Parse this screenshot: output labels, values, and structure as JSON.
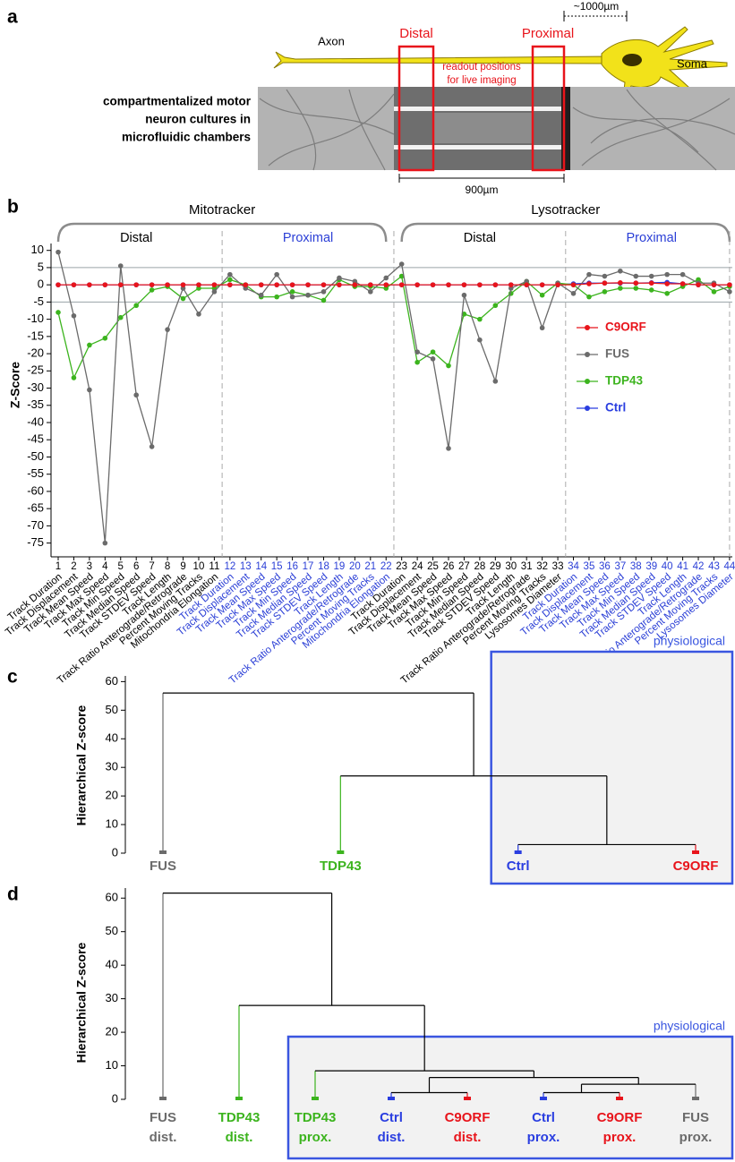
{
  "figure": {
    "panel_a": {
      "letter": "a",
      "scale_bar": "~1000µm",
      "axon": "Axon",
      "soma": "Soma",
      "distal": "Distal",
      "proximal": "Proximal",
      "readout": [
        "readout positions",
        "for live imaging"
      ],
      "culture_caption": [
        "compartmentalized motor",
        "neuron cultures in",
        "microfluidic chambers"
      ],
      "chamber_length": "900µm"
    }
  },
  "chart_data": [
    {
      "panel": "b",
      "type": "line",
      "ylabel": "Z-Score",
      "ylim": [
        -79,
        12
      ],
      "yticks": [
        10,
        5,
        0,
        -5,
        -10,
        -15,
        -20,
        -25,
        -30,
        -35,
        -40,
        -45,
        -50,
        -55,
        -60,
        -65,
        -70,
        -75
      ],
      "reference_lines": [
        5,
        -5
      ],
      "categories": [
        1,
        2,
        3,
        4,
        5,
        6,
        7,
        8,
        9,
        10,
        11,
        12,
        13,
        14,
        15,
        16,
        17,
        18,
        19,
        20,
        21,
        22,
        23,
        24,
        25,
        26,
        27,
        28,
        29,
        30,
        31,
        32,
        33,
        34,
        35,
        36,
        37,
        38,
        39,
        40,
        41,
        42,
        43,
        44
      ],
      "groups": [
        {
          "name": "Mitotracker",
          "subgroups": [
            {
              "name": "Distal",
              "color": "#000000",
              "metrics": [
                "Track Duration",
                "Track Displacement",
                "Track Mean Speed",
                "Track Max Speed",
                "Track Min Speed",
                "Track Median Speed",
                "Track STDEV Speed",
                "Track Length",
                "Track Ratio Anterograde/Retrograde",
                "Percent Moving Tracks",
                "Mitochondria Elongation"
              ]
            },
            {
              "name": "Proximal",
              "color": "#2b3fd6",
              "metrics": [
                "Track Duration",
                "Track Displacement",
                "Track Mean Speed",
                "Track Max Speed",
                "Track Min Speed",
                "Track Median Speed",
                "Track STDEV Speed",
                "Track Length",
                "Track Ratio Anterograde/Retrograde",
                "Percent Moving Tracks",
                "Mitochondria Elongation"
              ]
            }
          ]
        },
        {
          "name": "Lysotracker",
          "subgroups": [
            {
              "name": "Distal",
              "color": "#000000",
              "metrics": [
                "Track Duration",
                "Track Displacement",
                "Track Mean Speed",
                "Track Max Speed",
                "Track Min Speed",
                "Track Median Speed",
                "Track STDEV Speed",
                "Track Length",
                "Track Ratio Anterograde/Retrograde",
                "Percent Moving Tracks",
                "Lysosomes Diameter"
              ]
            },
            {
              "name": "Proximal",
              "color": "#2b3fd6",
              "metrics": [
                "Track Duration",
                "Track Displacement",
                "Track Mean Speed",
                "Track Max Speed",
                "Track Min Speed",
                "Track Median Speed",
                "Track STDEV Speed",
                "Track Length",
                "Track Ratio Anterograde/Retrograde",
                "Percent Moving Tracks",
                "Lysosomes Diameter"
              ]
            }
          ]
        }
      ],
      "series": [
        {
          "name": "C9ORF",
          "color": "#e8141b",
          "values": [
            0,
            0,
            0,
            0,
            0,
            0,
            0,
            0,
            0,
            0,
            0,
            0,
            0,
            0,
            0,
            0,
            0,
            0,
            0,
            0,
            0,
            0,
            0,
            0,
            0,
            0,
            0,
            0,
            0,
            0,
            0,
            0,
            0,
            0,
            0.3,
            0.5,
            0.6,
            0.5,
            0.5,
            0.3,
            0.3,
            0,
            0,
            0
          ]
        },
        {
          "name": "FUS",
          "color": "#6b6b6b",
          "values": [
            9.5,
            -9,
            -30.5,
            -75,
            5.5,
            -32,
            -47,
            -13,
            -1,
            -8.5,
            -2,
            3,
            -1,
            -3,
            3,
            -3.5,
            -3,
            -2,
            2,
            1,
            -2,
            2,
            6,
            -19.5,
            -21.5,
            -47.5,
            -3,
            -16,
            -28,
            -1,
            1,
            -12.5,
            0.5,
            -2.5,
            3,
            2.5,
            4,
            2.5,
            2.5,
            3,
            3,
            0.5,
            0.5,
            -2
          ]
        },
        {
          "name": "TDP43",
          "color": "#3cb41e",
          "values": [
            -8,
            -27,
            -17.5,
            -15.5,
            -9.5,
            -6,
            -1.5,
            -0.5,
            -4,
            -1,
            -1,
            1.5,
            0,
            -3.5,
            -3.5,
            -2,
            -3,
            -4.5,
            1.5,
            -0.5,
            -0.5,
            -1,
            2.5,
            -22.5,
            -19.5,
            -23.5,
            -8.5,
            -10,
            -6,
            -2.5,
            1,
            -3,
            0.5,
            0,
            -3.5,
            -2,
            -1,
            -1,
            -1.5,
            -2.5,
            -0.5,
            1.5,
            -2,
            -0.5
          ]
        },
        {
          "name": "Ctrl",
          "color": "#2a3ee0",
          "values": [
            0,
            0,
            0,
            0,
            0,
            0,
            0,
            0,
            0,
            0,
            0,
            0,
            0,
            0,
            0,
            0,
            0,
            0,
            0,
            0,
            0,
            0,
            0,
            0,
            0,
            0,
            0,
            0,
            0,
            0,
            0,
            0,
            0,
            0.3,
            0.5,
            0.5,
            0.5,
            0.5,
            0.6,
            0.7,
            0.3,
            0,
            0,
            0
          ]
        }
      ],
      "legend": "right"
    },
    {
      "panel": "c",
      "type": "dendrogram",
      "ylabel": "Hierarchical Z-score",
      "ylim": [
        0,
        62
      ],
      "yticks": [
        0,
        10,
        20,
        30,
        40,
        50,
        60
      ],
      "highlight_color": "#3a56e0",
      "tree": {
        "height": 56,
        "children": [
          {
            "label": "FUS",
            "color": "#6b6b6b"
          },
          {
            "height": 27,
            "children": [
              {
                "label": "TDP43",
                "color": "#3cb41e"
              },
              {
                "height": 3,
                "highlight": "physiological",
                "children": [
                  {
                    "label": "Ctrl",
                    "color": "#2a3ee0"
                  },
                  {
                    "label": "C9ORF",
                    "color": "#e8141b"
                  }
                ]
              }
            ]
          }
        ]
      }
    },
    {
      "panel": "d",
      "type": "dendrogram",
      "ylabel": "Hierarchical Z-score",
      "ylim": [
        0,
        63
      ],
      "yticks": [
        0,
        10,
        20,
        30,
        40,
        50,
        60
      ],
      "highlight_color": "#3a56e0",
      "tree": {
        "height": 61.5,
        "children": [
          {
            "label": "FUS",
            "sublabel": "dist.",
            "color": "#6b6b6b"
          },
          {
            "height": 28,
            "children": [
              {
                "label": "TDP43",
                "sublabel": "dist.",
                "color": "#3cb41e"
              },
              {
                "height": 8.5,
                "highlight": "physiological",
                "children": [
                  {
                    "label": "TDP43",
                    "sublabel": "prox.",
                    "color": "#3cb41e"
                  },
                  {
                    "height": 6.5,
                    "children": [
                      {
                        "height": 2,
                        "children": [
                          {
                            "label": "Ctrl",
                            "sublabel": "dist.",
                            "color": "#2a3ee0"
                          },
                          {
                            "label": "C9ORF",
                            "sublabel": "dist.",
                            "color": "#e8141b"
                          }
                        ]
                      },
                      {
                        "height": 4.5,
                        "children": [
                          {
                            "height": 2,
                            "children": [
                              {
                                "label": "Ctrl",
                                "sublabel": "prox.",
                                "color": "#2a3ee0"
                              },
                              {
                                "label": "C9ORF",
                                "sublabel": "prox.",
                                "color": "#e8141b"
                              }
                            ]
                          },
                          {
                            "label": "FUS",
                            "sublabel": "prox.",
                            "color": "#6b6b6b"
                          }
                        ]
                      }
                    ]
                  }
                ]
              }
            ]
          }
        ]
      }
    }
  ]
}
